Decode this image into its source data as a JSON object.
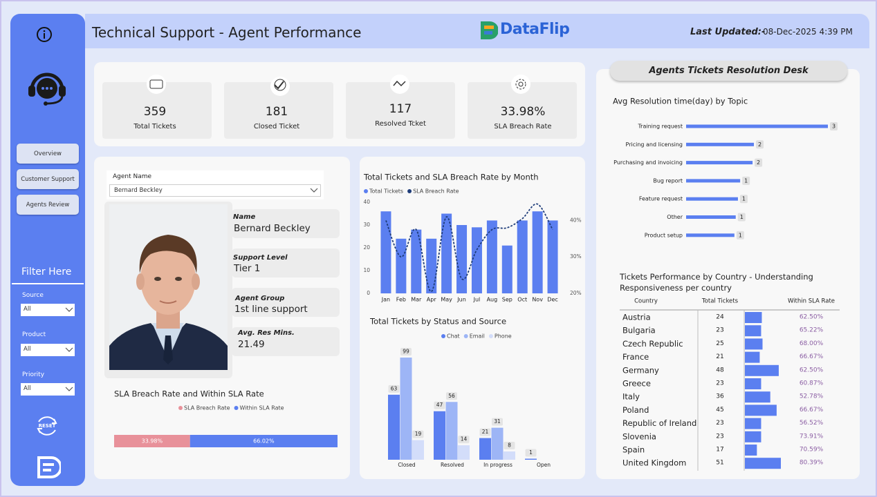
{
  "header": {
    "title": "Technical Support - Agent Performance",
    "logo": "DataFlip",
    "last_updated_label": "Last Updated:-",
    "last_updated": "08-Dec-2025 4:39 PM"
  },
  "sidebar": {
    "nav": [
      "Overview",
      "Customer Support",
      "Agents Review"
    ],
    "filter_title": "Filter Here",
    "filters": [
      {
        "label": "Source",
        "value": "All"
      },
      {
        "label": "Product",
        "value": "All"
      },
      {
        "label": "Priority",
        "value": "All"
      }
    ],
    "reset": "RESET"
  },
  "kpis": [
    {
      "value": "359",
      "label": "Total Tickets"
    },
    {
      "value": "181",
      "label": "Closed Ticket"
    },
    {
      "value": "117",
      "label": "Resolved Tcket"
    },
    {
      "value": "33.98%",
      "label": "SLA Breach Rate"
    }
  ],
  "agent": {
    "select_label": "Agent Name",
    "selected": "Bernard Beckley",
    "fields": [
      {
        "label": "Name",
        "value": "Bernard Beckley"
      },
      {
        "label": "Support Level",
        "value": "Tier 1"
      },
      {
        "label": "Agent Group",
        "value": "1st line support"
      },
      {
        "label": "Avg. Res Mins.",
        "value": "21.49"
      }
    ]
  },
  "desk_title": "Agents Tickets Resolution Desk",
  "chart_data": [
    {
      "type": "bar",
      "title": "Total Tickets and SLA Breach Rate by Month",
      "categories": [
        "Jan",
        "Feb",
        "Mar",
        "Apr",
        "May",
        "Jun",
        "Jul",
        "Aug",
        "Sep",
        "Oct",
        "Nov",
        "Dec"
      ],
      "series": [
        {
          "name": "Total Tickets",
          "color": "#5b7ff0",
          "values": [
            36,
            24,
            28,
            24,
            35,
            30,
            29,
            32,
            21,
            32,
            36,
            32
          ]
        },
        {
          "name": "SLA Breach Rate",
          "color": "#1f3d7a",
          "type": "line",
          "axis": "y2",
          "values": [
            40,
            30,
            37.5,
            20.5,
            41,
            24,
            32,
            37.5,
            38,
            40.5,
            44.5,
            37.5
          ]
        }
      ],
      "ylim": [
        0,
        40
      ],
      "yticks": [
        0,
        10,
        20,
        30,
        40
      ],
      "y2lim": [
        20,
        45
      ],
      "y2ticks": [
        {
          "value": 20,
          "label": "20%"
        },
        {
          "value": 30,
          "label": "30%"
        },
        {
          "value": 40,
          "label": "40%"
        }
      ],
      "legend": "top-left"
    },
    {
      "type": "bar",
      "title": "Total Tickets by Status and Source",
      "categories": [
        "Closed",
        "Resolved",
        "In progress",
        "Open"
      ],
      "series": [
        {
          "name": "Chat",
          "color": "#5b7ff0",
          "values": [
            63,
            47,
            21,
            1
          ]
        },
        {
          "name": "Email",
          "color": "#9db5f6",
          "values": [
            99,
            56,
            31,
            null
          ]
        },
        {
          "name": "Phone",
          "color": "#d3ddfa",
          "values": [
            19,
            14,
            8,
            null
          ]
        }
      ],
      "legend": "top"
    },
    {
      "type": "bar",
      "orientation": "horizontal",
      "title": "Avg Resolution time(day) by Topic",
      "categories": [
        "Training request",
        "Pricing and licensing",
        "Purchasing and invoicing",
        "Bug report",
        "Feature request",
        "Other",
        "Product setup"
      ],
      "values": [
        3.2,
        1.53,
        1.5,
        1.22,
        1.17,
        1.12,
        1.09
      ],
      "value_labels": [
        "3",
        "2",
        "2",
        "1",
        "1",
        "1",
        "1"
      ],
      "color": "#5b7ff0"
    },
    {
      "type": "bar",
      "orientation": "horizontal",
      "stacked": true,
      "title": "SLA Breach Rate and Within SLA Rate",
      "series": [
        {
          "name": "SLA Breach Rate",
          "color": "#e8919a",
          "values": [
            33.98
          ],
          "value_labels": [
            "33.98%"
          ]
        },
        {
          "name": "Within SLA Rate",
          "color": "#5b7ff0",
          "values": [
            66.02
          ],
          "value_labels": [
            "66.02%"
          ]
        }
      ],
      "legend": "top"
    }
  ],
  "country_table": {
    "title": "Tickets Performance by Country - Understanding Responsiveness per country",
    "columns": [
      "Country",
      "Total Tickets",
      "Within SLA Rate"
    ],
    "rows": [
      [
        "Austria",
        24,
        "62.50%"
      ],
      [
        "Bulgaria",
        23,
        "65.22%"
      ],
      [
        "Czech Republic",
        25,
        "68.00%"
      ],
      [
        "France",
        21,
        "66.67%"
      ],
      [
        "Germany",
        48,
        "62.50%"
      ],
      [
        "Greece",
        23,
        "60.87%"
      ],
      [
        "Italy",
        36,
        "52.78%"
      ],
      [
        "Poland",
        45,
        "66.67%"
      ],
      [
        "Republic of Ireland",
        23,
        "56.52%"
      ],
      [
        "Slovenia",
        23,
        "73.91%"
      ],
      [
        "Spain",
        17,
        "70.59%"
      ],
      [
        "United Kingdom",
        51,
        "80.39%"
      ]
    ]
  }
}
